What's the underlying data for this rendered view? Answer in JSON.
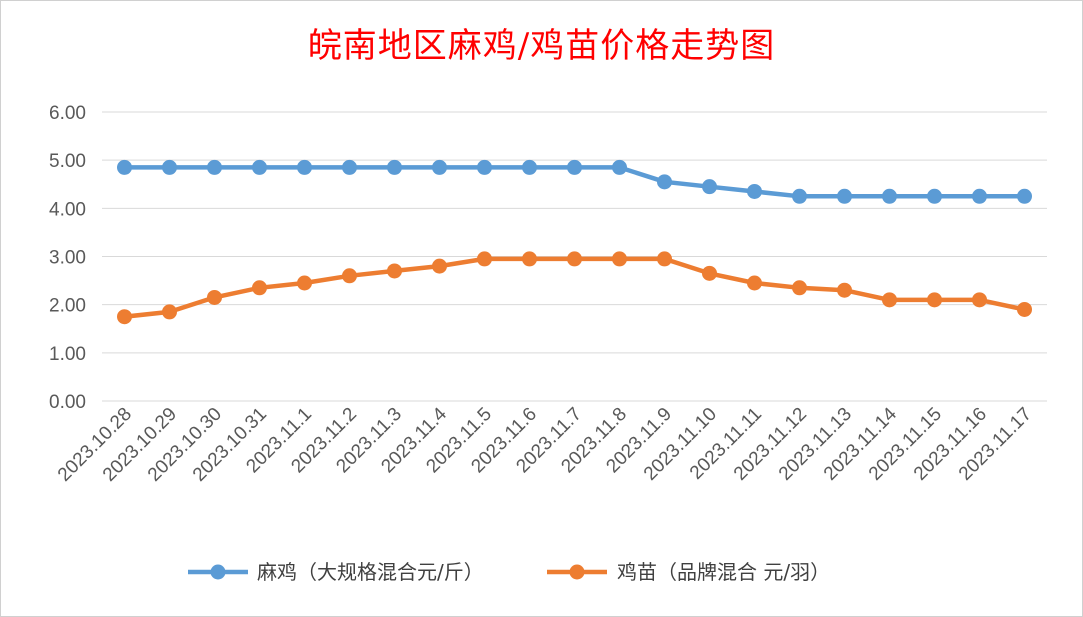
{
  "chart_data": {
    "type": "line",
    "title": "皖南地区麻鸡/鸡苗价格走势图",
    "categories": [
      "2023.10.28",
      "2023.10.29",
      "2023.10.30",
      "2023.10.31",
      "2023.11.1",
      "2023.11.2",
      "2023.11.3",
      "2023.11.4",
      "2023.11.5",
      "2023.11.6",
      "2023.11.7",
      "2023.11.8",
      "2023.11.9",
      "2023.11.10",
      "2023.11.11",
      "2023.11.12",
      "2023.11.13",
      "2023.11.14",
      "2023.11.15",
      "2023.11.16",
      "2023.11.17"
    ],
    "series": [
      {
        "name": "麻鸡（大规格混合元/斤）",
        "color": "#5b9bd5",
        "values": [
          4.85,
          4.85,
          4.85,
          4.85,
          4.85,
          4.85,
          4.85,
          4.85,
          4.85,
          4.85,
          4.85,
          4.85,
          4.55,
          4.45,
          4.35,
          4.25,
          4.25,
          4.25,
          4.25,
          4.25,
          4.25
        ]
      },
      {
        "name": "鸡苗（品牌混合 元/羽）",
        "color": "#ed7d31",
        "values": [
          1.75,
          1.85,
          2.15,
          2.35,
          2.45,
          2.6,
          2.7,
          2.8,
          2.95,
          2.95,
          2.95,
          2.95,
          2.95,
          2.65,
          2.45,
          2.35,
          2.3,
          2.1,
          2.1,
          2.1,
          1.9
        ]
      }
    ],
    "yticks": [
      "0.00",
      "1.00",
      "2.00",
      "3.00",
      "4.00",
      "5.00",
      "6.00"
    ],
    "ylim": [
      0,
      6
    ],
    "grid": true,
    "legend_position": "bottom"
  }
}
